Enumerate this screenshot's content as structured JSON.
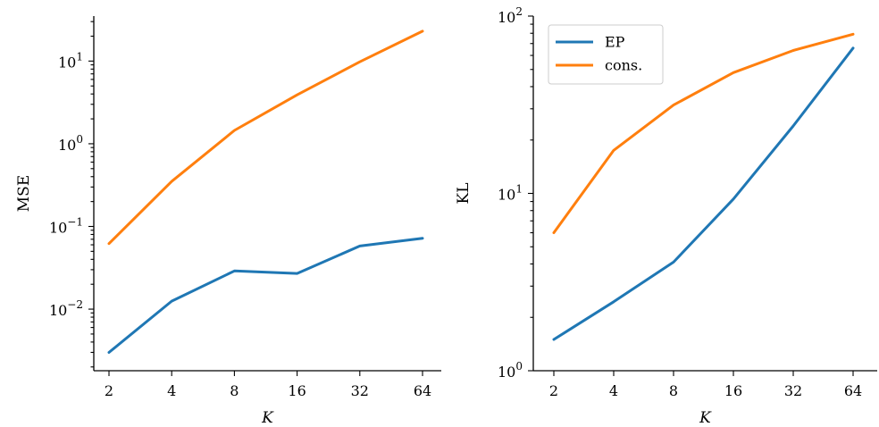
{
  "chart_data": [
    {
      "type": "line",
      "xlabel": "K",
      "ylabel": "MSE",
      "x": [
        2,
        4,
        8,
        16,
        32,
        64
      ],
      "x_scale": "log2",
      "y_scale": "log10",
      "ylim": [
        0.0018,
        35
      ],
      "x_ticks": [
        "2",
        "4",
        "8",
        "16",
        "32",
        "64"
      ],
      "y_ticks": [
        {
          "value": 0.01,
          "base": "10",
          "exp": "−2"
        },
        {
          "value": 0.1,
          "base": "10",
          "exp": "−1"
        },
        {
          "value": 1,
          "base": "10",
          "exp": "0"
        },
        {
          "value": 10,
          "base": "10",
          "exp": "1"
        }
      ],
      "series": [
        {
          "name": "EP",
          "color": "#1f77b4",
          "values": [
            0.003,
            0.0125,
            0.029,
            0.027,
            0.058,
            0.072
          ]
        },
        {
          "name": "cons.",
          "color": "#ff7f0e",
          "values": [
            0.062,
            0.35,
            1.45,
            3.9,
            9.8,
            23
          ]
        }
      ],
      "legend": "none",
      "grid": false
    },
    {
      "type": "line",
      "xlabel": "K",
      "ylabel": "KL",
      "x": [
        2,
        4,
        8,
        16,
        32,
        64
      ],
      "x_scale": "log2",
      "y_scale": "log10",
      "ylim": [
        1,
        100
      ],
      "x_ticks": [
        "2",
        "4",
        "8",
        "16",
        "32",
        "64"
      ],
      "y_ticks": [
        {
          "value": 1,
          "base": "10",
          "exp": "0"
        },
        {
          "value": 10,
          "base": "10",
          "exp": "1"
        },
        {
          "value": 100,
          "base": "10",
          "exp": "2"
        }
      ],
      "series": [
        {
          "name": "EP",
          "color": "#1f77b4",
          "values": [
            1.5,
            2.45,
            4.1,
            9.3,
            24,
            66
          ]
        },
        {
          "name": "cons.",
          "color": "#ff7f0e",
          "values": [
            6,
            17.5,
            31.5,
            48,
            64,
            79
          ]
        }
      ],
      "legend": "top-left",
      "grid": false
    }
  ]
}
